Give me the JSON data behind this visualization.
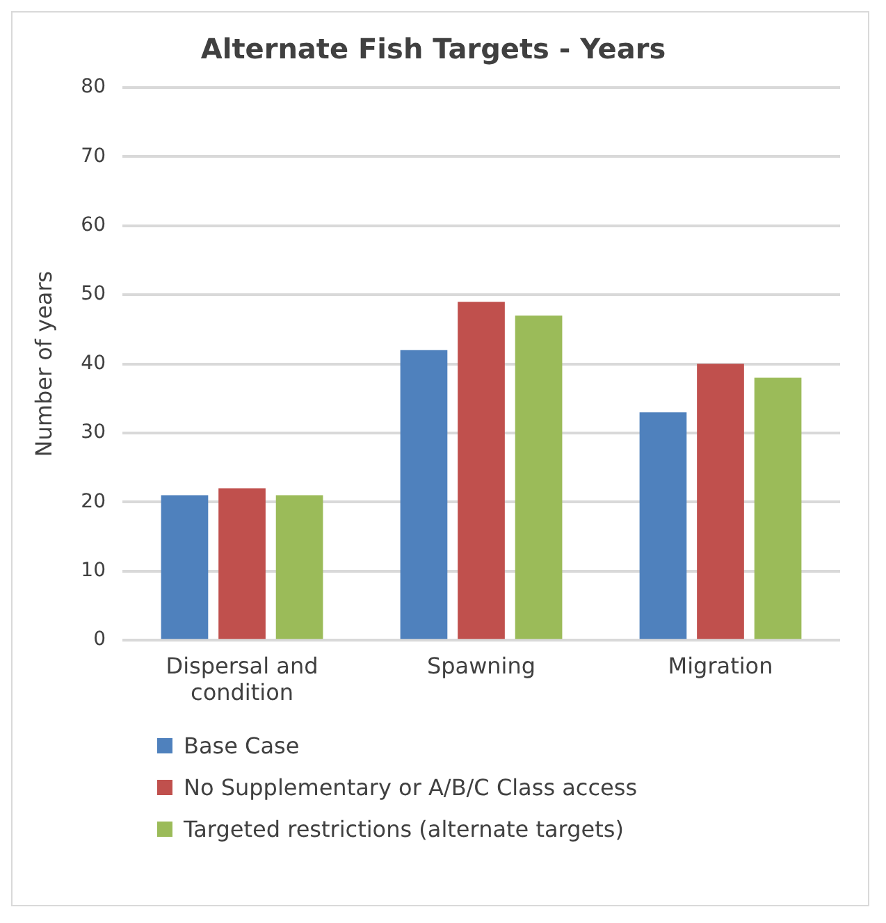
{
  "chart_data": {
    "type": "bar",
    "title": "Alternate Fish Targets - Years",
    "ylabel": "Number of years",
    "categories": [
      "Dispersal and condition",
      "Spawning",
      "Migration"
    ],
    "series": [
      {
        "name": "Base Case",
        "color": "#4f81bd",
        "values": [
          21,
          42,
          33
        ]
      },
      {
        "name": "No Supplementary or A/B/C Class access",
        "color": "#c0504d",
        "values": [
          22,
          49,
          40
        ]
      },
      {
        "name": "Targeted restrictions (alternate targets)",
        "color": "#9bbb59",
        "values": [
          21,
          47,
          38
        ]
      }
    ],
    "ylim": [
      0,
      80
    ],
    "yticks": [
      0,
      10,
      20,
      30,
      40,
      50,
      60,
      70,
      80
    ],
    "grid": "y",
    "legend": "bottom"
  }
}
